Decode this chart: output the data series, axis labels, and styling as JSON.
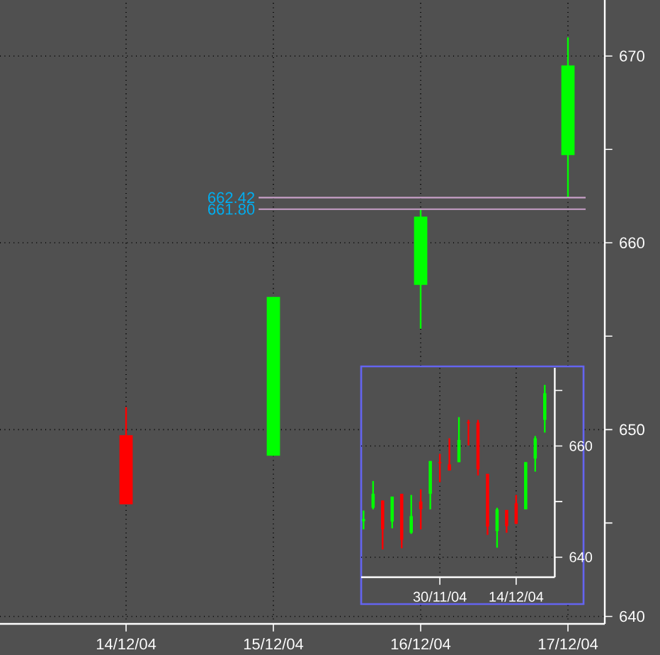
{
  "chart_data": [
    {
      "type": "candlestick",
      "categories": [
        "14/12/04",
        "15/12/04",
        "16/12/04",
        "17/12/04"
      ],
      "ohlc": [
        [
          649.7,
          651.2,
          646.0,
          646.0
        ],
        [
          648.6,
          657.1,
          648.6,
          657.1
        ],
        [
          657.75,
          661.8,
          655.4,
          661.4
        ],
        [
          664.7,
          671.0,
          662.42,
          669.5
        ]
      ],
      "colors": [
        "#ff0000",
        "#00ff00",
        "#00ff00",
        "#00ff00"
      ],
      "ylim": [
        639.6,
        673
      ],
      "yticks": [
        640,
        {
          "value": 645,
          "label": null
        },
        650,
        {
          "value": 655,
          "label": null
        },
        660,
        {
          "value": 665,
          "label": null
        },
        670
      ],
      "grid": true,
      "ref_lines": [
        {
          "axis": "y",
          "value": 662.42,
          "label": "662.42",
          "color": "#c8a0c8"
        },
        {
          "axis": "y",
          "value": 661.8,
          "label": "661.80",
          "color": "#c8a0c8"
        }
      ]
    },
    {
      "type": "candlestick",
      "categories": [
        null,
        null,
        null,
        null,
        null,
        null,
        null,
        null,
        "30/11/04",
        null,
        null,
        null,
        null,
        null,
        null,
        null,
        "14/12/04",
        null,
        null,
        null
      ],
      "ohlc": [
        [
          646.5,
          648.4,
          645.0,
          646.9
        ],
        [
          648.9,
          653.7,
          648.6,
          651.4
        ],
        [
          650.2,
          650.2,
          641.4,
          645.0
        ],
        [
          646.4,
          650.9,
          645.2,
          650.9
        ],
        [
          651.4,
          651.4,
          641.6,
          643.1
        ],
        [
          644.4,
          651.2,
          644.2,
          647.4
        ],
        [
          650.0,
          652.2,
          645.0,
          648.6
        ],
        [
          651.4,
          657.3,
          648.6,
          657.3
        ],
        [
          657.1,
          658.6,
          653.5,
          656.9
        ],
        [
          656.7,
          661.4,
          655.6,
          655.6
        ],
        [
          657.1,
          665.2,
          657.1,
          661.1
        ],
        [
          664.3,
          664.7,
          660.1,
          664.1
        ],
        [
          664.2,
          664.7,
          654.7,
          655.8
        ],
        [
          655.0,
          655.0,
          644.0,
          645.5
        ],
        [
          644.7,
          648.9,
          641.7,
          648.6
        ],
        [
          648.5,
          648.5,
          644.4,
          645.6
        ],
        [
          649.7,
          651.2,
          646.0,
          646.0
        ],
        [
          648.6,
          657.1,
          648.6,
          657.1
        ],
        [
          657.75,
          661.8,
          655.4,
          661.4
        ],
        [
          664.7,
          671.0,
          662.42,
          669.5
        ]
      ],
      "colors": [
        "#00ff00",
        "#00ff00",
        "#ff0000",
        "#00ff00",
        "#ff0000",
        "#00ff00",
        "#ff0000",
        "#00ff00",
        "#ff0000",
        "#ff0000",
        "#00ff00",
        "#ff0000",
        "#ff0000",
        "#ff0000",
        "#00ff00",
        "#ff0000",
        "#ff0000",
        "#00ff00",
        "#00ff00",
        "#00ff00"
      ],
      "ylim": [
        636.4,
        674.07
      ],
      "yticks": [
        640,
        {
          "value": 650,
          "label": null
        },
        660,
        {
          "value": 670,
          "label": null
        }
      ],
      "grid": true
    }
  ]
}
